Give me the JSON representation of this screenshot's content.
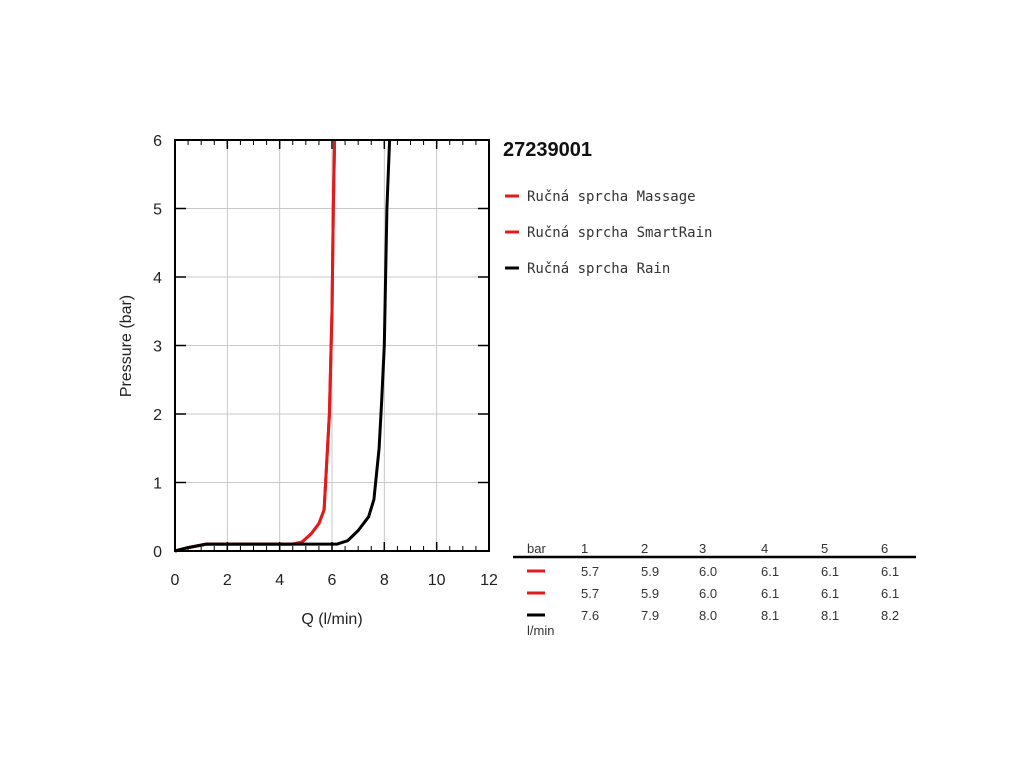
{
  "chart_data": {
    "type": "line",
    "title": "27239001",
    "xlabel": "Q (l/min)",
    "ylabel": "Pressure (bar)",
    "xlim": [
      0,
      12
    ],
    "ylim": [
      0,
      6
    ],
    "xticks": [
      "0",
      "2",
      "4",
      "6",
      "8",
      "10",
      "12"
    ],
    "yticks": [
      "0",
      "1",
      "2",
      "3",
      "4",
      "5",
      "6"
    ],
    "grid": true,
    "legend_position": "right",
    "series": [
      {
        "name": "Ručná sprcha Massage",
        "color": "#e11b1b",
        "points": [
          [
            0,
            0
          ],
          [
            0.5,
            0.05
          ],
          [
            1.2,
            0.1
          ],
          [
            4.5,
            0.1
          ],
          [
            4.85,
            0.13
          ],
          [
            5.2,
            0.25
          ],
          [
            5.5,
            0.4
          ],
          [
            5.7,
            0.6
          ],
          [
            5.9,
            2.0
          ],
          [
            6.0,
            3.5
          ],
          [
            6.05,
            5.0
          ],
          [
            6.1,
            6.0
          ]
        ]
      },
      {
        "name": "Ručná sprcha SmartRain",
        "color": "#e11b1b",
        "points": [
          [
            0,
            0
          ],
          [
            0.5,
            0.05
          ],
          [
            1.2,
            0.1
          ],
          [
            4.5,
            0.1
          ],
          [
            4.85,
            0.13
          ],
          [
            5.2,
            0.25
          ],
          [
            5.5,
            0.4
          ],
          [
            5.7,
            0.6
          ],
          [
            5.9,
            2.0
          ],
          [
            6.0,
            3.5
          ],
          [
            6.05,
            5.0
          ],
          [
            6.1,
            6.0
          ]
        ]
      },
      {
        "name": "Ručná sprcha Rain",
        "color": "#000000",
        "points": [
          [
            0,
            0
          ],
          [
            0.5,
            0.05
          ],
          [
            1.2,
            0.1
          ],
          [
            6.2,
            0.1
          ],
          [
            6.6,
            0.15
          ],
          [
            7.0,
            0.3
          ],
          [
            7.4,
            0.5
          ],
          [
            7.6,
            0.75
          ],
          [
            7.8,
            1.5
          ],
          [
            7.9,
            2.2
          ],
          [
            8.0,
            3.0
          ],
          [
            8.05,
            4.0
          ],
          [
            8.1,
            5.0
          ],
          [
            8.2,
            6.0
          ]
        ]
      }
    ]
  },
  "table": {
    "header_label": "bar",
    "columns": [
      "1",
      "2",
      "3",
      "4",
      "5",
      "6"
    ],
    "unit_label": "l/min",
    "rows": [
      {
        "color": "#e11b1b",
        "values": [
          "5.7",
          "5.9",
          "6.0",
          "6.1",
          "6.1",
          "6.1"
        ]
      },
      {
        "color": "#e11b1b",
        "values": [
          "5.7",
          "5.9",
          "6.0",
          "6.1",
          "6.1",
          "6.1"
        ]
      },
      {
        "color": "#000000",
        "values": [
          "7.6",
          "7.9",
          "8.0",
          "8.1",
          "8.1",
          "8.2"
        ]
      }
    ]
  }
}
